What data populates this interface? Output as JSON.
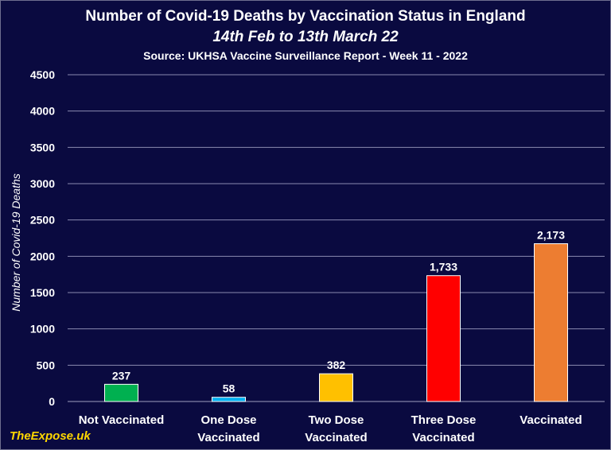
{
  "chart_data": {
    "type": "bar",
    "title": "Number of Covid-19 Deaths by Vaccination Status in England",
    "subtitle": "14th Feb to 13th March 22",
    "source": "Source: UKHSA Vaccine Surveillance Report - Week 11 - 2022",
    "xlabel": "",
    "ylabel": "Number of Covid-19 Deaths",
    "ylim": [
      0,
      4500
    ],
    "yticks": [
      "0",
      "500",
      "1000",
      "1500",
      "2000",
      "2500",
      "3000",
      "3500",
      "4000",
      "4500"
    ],
    "grid": true,
    "legend": "none",
    "categories": [
      [
        "Not Vaccinated"
      ],
      [
        "One Dose",
        "Vaccinated"
      ],
      [
        "Two Dose",
        "Vaccinated"
      ],
      [
        "Three Dose",
        "Vaccinated"
      ],
      [
        "Vaccinated"
      ]
    ],
    "values": [
      237,
      58,
      382,
      1733,
      2173
    ],
    "value_labels": [
      "237",
      "58",
      "382",
      "1,733",
      "2,173"
    ],
    "colors": [
      "#00b050",
      "#00b0f0",
      "#ffc000",
      "#ff0000",
      "#ed7d31"
    ]
  },
  "watermark": "TheExpose.uk"
}
